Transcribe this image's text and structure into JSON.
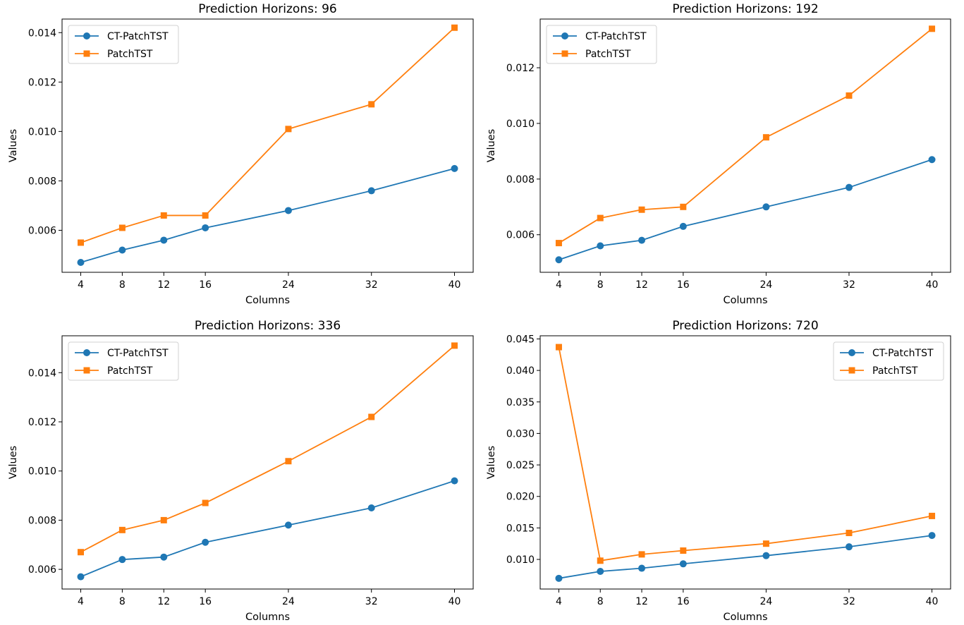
{
  "colors": {
    "ct_patchtst": "#1f77b4",
    "patchtst": "#ff7f0e"
  },
  "chart_data": [
    {
      "type": "line",
      "title": "Prediction Horizons: 96",
      "xlabel": "Columns",
      "ylabel": "Values",
      "x": [
        4,
        8,
        12,
        16,
        24,
        32,
        40
      ],
      "xticks": [
        "4",
        "8",
        "12",
        "16",
        "24",
        "32",
        "40"
      ],
      "xlim": [
        2.2,
        41.8
      ],
      "ylim": [
        0.0043,
        0.01455
      ],
      "yticks": [
        "0.006",
        "0.008",
        "0.010",
        "0.012",
        "0.014"
      ],
      "legend_position": "top-left",
      "series": [
        {
          "name": "CT-PatchTST",
          "marker": "circle",
          "values": [
            0.0047,
            0.0052,
            0.0056,
            0.0061,
            0.0068,
            0.0076,
            0.0085
          ]
        },
        {
          "name": "PatchTST",
          "marker": "square",
          "values": [
            0.0055,
            0.0061,
            0.0066,
            0.0066,
            0.0101,
            0.0111,
            0.0142
          ]
        }
      ]
    },
    {
      "type": "line",
      "title": "Prediction Horizons: 192",
      "xlabel": "Columns",
      "ylabel": "Values",
      "x": [
        4,
        8,
        12,
        16,
        24,
        32,
        40
      ],
      "xticks": [
        "4",
        "8",
        "12",
        "16",
        "24",
        "32",
        "40"
      ],
      "xlim": [
        2.2,
        41.8
      ],
      "ylim": [
        0.00465,
        0.01375
      ],
      "yticks": [
        "0.006",
        "0.008",
        "0.010",
        "0.012"
      ],
      "legend_position": "top-left",
      "series": [
        {
          "name": "CT-PatchTST",
          "marker": "circle",
          "values": [
            0.0051,
            0.0056,
            0.0058,
            0.0063,
            0.007,
            0.0077,
            0.0087
          ]
        },
        {
          "name": "PatchTST",
          "marker": "square",
          "values": [
            0.0057,
            0.0066,
            0.0069,
            0.007,
            0.0095,
            0.011,
            0.0134
          ]
        }
      ]
    },
    {
      "type": "line",
      "title": "Prediction Horizons: 336",
      "xlabel": "Columns",
      "ylabel": "Values",
      "x": [
        4,
        8,
        12,
        16,
        24,
        32,
        40
      ],
      "xticks": [
        "4",
        "8",
        "12",
        "16",
        "24",
        "32",
        "40"
      ],
      "xlim": [
        2.2,
        41.8
      ],
      "ylim": [
        0.0052,
        0.0155
      ],
      "yticks": [
        "0.006",
        "0.008",
        "0.010",
        "0.012",
        "0.014"
      ],
      "legend_position": "top-left",
      "series": [
        {
          "name": "CT-PatchTST",
          "marker": "circle",
          "values": [
            0.0057,
            0.0064,
            0.0065,
            0.0071,
            0.0078,
            0.0085,
            0.0096
          ]
        },
        {
          "name": "PatchTST",
          "marker": "square",
          "values": [
            0.0067,
            0.0076,
            0.008,
            0.0087,
            0.0104,
            0.0122,
            0.0151
          ]
        }
      ]
    },
    {
      "type": "line",
      "title": "Prediction Horizons: 720",
      "xlabel": "Columns",
      "ylabel": "Values",
      "x": [
        4,
        8,
        12,
        16,
        24,
        32,
        40
      ],
      "xticks": [
        "4",
        "8",
        "12",
        "16",
        "24",
        "32",
        "40"
      ],
      "xlim": [
        2.2,
        41.8
      ],
      "ylim": [
        0.0053,
        0.0455
      ],
      "yticks": [
        "0.010",
        "0.015",
        "0.020",
        "0.025",
        "0.030",
        "0.035",
        "0.040",
        "0.045"
      ],
      "legend_position": "top-right",
      "series": [
        {
          "name": "CT-PatchTST",
          "marker": "circle",
          "values": [
            0.007,
            0.0081,
            0.0086,
            0.0093,
            0.0106,
            0.012,
            0.0138
          ]
        },
        {
          "name": "PatchTST",
          "marker": "square",
          "values": [
            0.0437,
            0.0098,
            0.0108,
            0.0114,
            0.0125,
            0.0142,
            0.0169
          ]
        }
      ]
    }
  ]
}
